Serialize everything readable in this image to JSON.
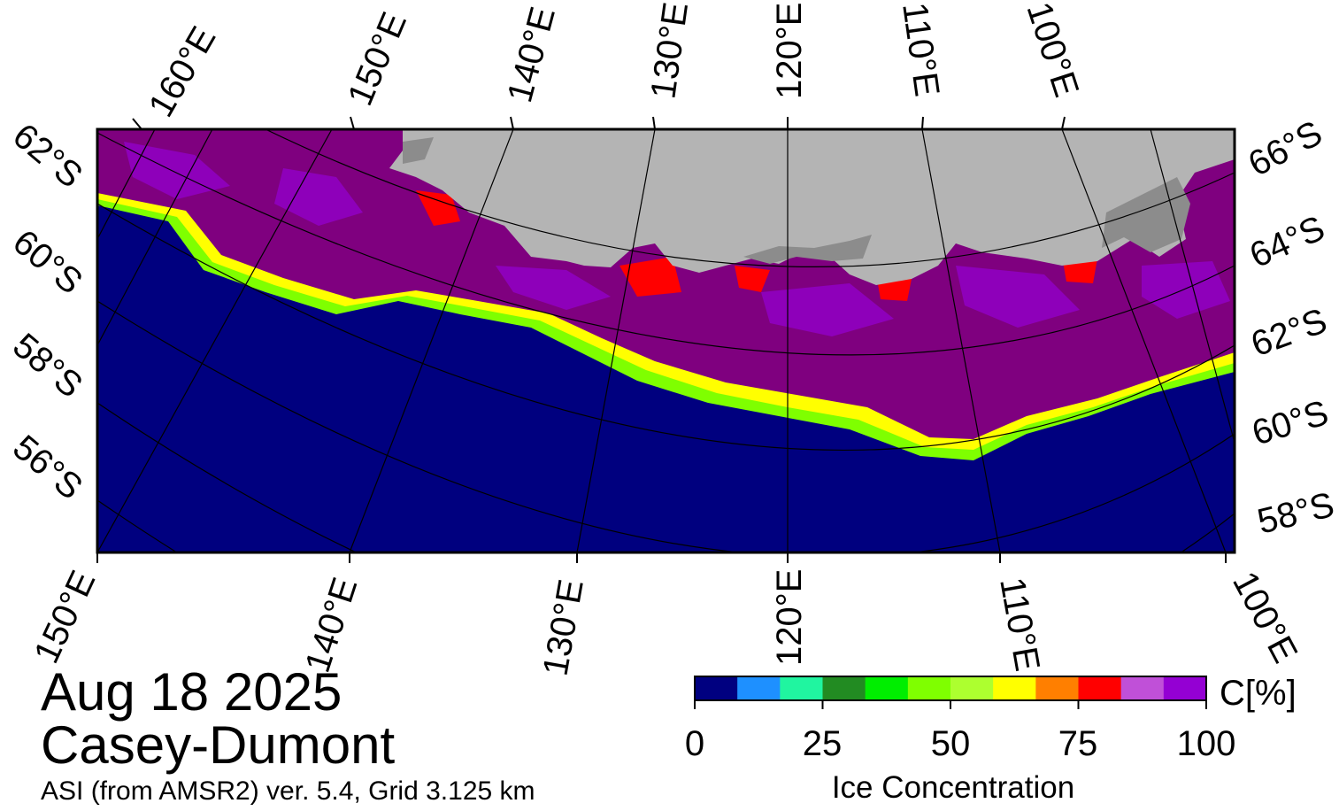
{
  "map": {
    "date": "Aug 18 2025",
    "region": "Casey-Dumont",
    "product": "ASI (from AMSR2) ver. 5.4,  Grid 3.125 km",
    "top_lon_labels": [
      "160°E",
      "150°E",
      "140°E",
      "130°E",
      "120°E",
      "110°E",
      "100°E"
    ],
    "bottom_lon_labels": [
      "150°E",
      "140°E",
      "130°E",
      "120°E",
      "110°E",
      "100°E"
    ],
    "left_lat_labels": [
      "62°S",
      "60°S",
      "58°S",
      "56°S"
    ],
    "right_lat_labels": [
      "66°S",
      "64°S",
      "62°S",
      "60°S",
      "58°S"
    ],
    "colors": {
      "ocean": "#00007f",
      "land": "#b4b4b4",
      "ice_shelf": "#8c8c8c",
      "pack_ice": "#7f007f"
    }
  },
  "colorbar": {
    "title": "Ice Concentration",
    "unit": "C[%]",
    "ticks": [
      "0",
      "25",
      "50",
      "75",
      "100"
    ],
    "colors": [
      "#000080",
      "#1e90ff",
      "#20f5a0",
      "#228b22",
      "#00ee00",
      "#7fff00",
      "#adff2f",
      "#ffff00",
      "#ff7f00",
      "#ff0000",
      "#c050d8",
      "#9400d3"
    ]
  }
}
